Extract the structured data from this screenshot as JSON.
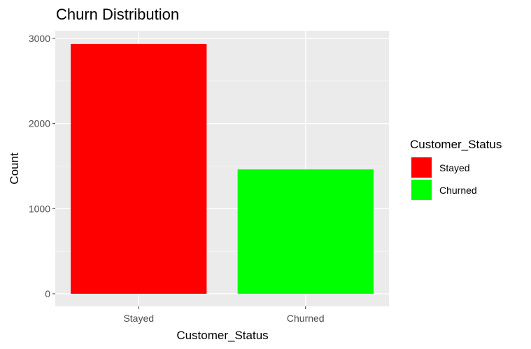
{
  "chart_data": {
    "type": "bar",
    "title": "Churn Distribution",
    "xlabel": "Customer_Status",
    "ylabel": "Count",
    "categories": [
      "Stayed",
      "Churned"
    ],
    "values": [
      2935,
      1461
    ],
    "colors": [
      "#ff0000",
      "#00ff00"
    ],
    "ylim": [
      -100,
      3000
    ],
    "yticks": [
      0,
      1000,
      2000,
      3000
    ],
    "ytick_labels": [
      "0",
      "1000",
      "2000",
      "3000"
    ],
    "grid": true,
    "panel_background": "#ebebeb",
    "legend": {
      "title": "Customer_Status",
      "placement": "right",
      "entries": [
        "Stayed",
        "Churned"
      ]
    }
  }
}
